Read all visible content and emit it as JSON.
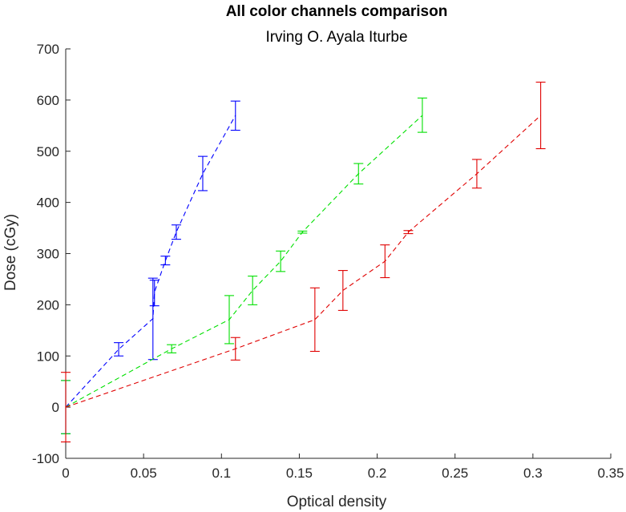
{
  "chart_data": {
    "type": "line",
    "title": "All color channels comparison",
    "subtitle": "Irving O. Ayala Iturbe",
    "xlabel": "Optical density",
    "ylabel": "Dose (cGy)",
    "xlim": [
      0,
      0.35
    ],
    "ylim": [
      -100,
      700
    ],
    "xticks": [
      "0",
      "0.05",
      "0.1",
      "0.15",
      "0.2",
      "0.25",
      "0.3",
      "0.35"
    ],
    "yticks": [
      "-100",
      "0",
      "100",
      "200",
      "300",
      "400",
      "500",
      "600",
      "700"
    ],
    "grid": false,
    "legend": "none",
    "line_style": "dashed",
    "series": [
      {
        "color": "#0000ff",
        "points": [
          {
            "x": 0.0,
            "y": 0,
            "err_low": -52,
            "err_high": 52
          },
          {
            "x": 0.034,
            "y": 113,
            "err_low": 100,
            "err_high": 126
          },
          {
            "x": 0.056,
            "y": 173,
            "err_low": 93,
            "err_high": 252
          },
          {
            "x": 0.057,
            "y": 225,
            "err_low": 198,
            "err_high": 248
          },
          {
            "x": 0.064,
            "y": 286,
            "err_low": 278,
            "err_high": 295
          },
          {
            "x": 0.071,
            "y": 342,
            "err_low": 328,
            "err_high": 356
          },
          {
            "x": 0.088,
            "y": 456,
            "err_low": 423,
            "err_high": 490
          },
          {
            "x": 0.109,
            "y": 570,
            "err_low": 541,
            "err_high": 598
          }
        ]
      },
      {
        "color": "#00e000",
        "points": [
          {
            "x": 0.0,
            "y": 0,
            "err_low": -52,
            "err_high": 52
          },
          {
            "x": 0.068,
            "y": 114,
            "err_low": 106,
            "err_high": 122
          },
          {
            "x": 0.105,
            "y": 171,
            "err_low": 124,
            "err_high": 218
          },
          {
            "x": 0.12,
            "y": 228,
            "err_low": 200,
            "err_high": 256
          },
          {
            "x": 0.138,
            "y": 285,
            "err_low": 265,
            "err_high": 305
          },
          {
            "x": 0.152,
            "y": 342,
            "err_low": 340,
            "err_high": 344
          },
          {
            "x": 0.188,
            "y": 456,
            "err_low": 436,
            "err_high": 476
          },
          {
            "x": 0.229,
            "y": 570,
            "err_low": 537,
            "err_high": 604
          }
        ]
      },
      {
        "color": "#e00000",
        "points": [
          {
            "x": 0.0,
            "y": 0,
            "err_low": -68,
            "err_high": 68
          },
          {
            "x": 0.109,
            "y": 114,
            "err_low": 92,
            "err_high": 136
          },
          {
            "x": 0.16,
            "y": 171,
            "err_low": 109,
            "err_high": 233
          },
          {
            "x": 0.178,
            "y": 228,
            "err_low": 189,
            "err_high": 267
          },
          {
            "x": 0.205,
            "y": 285,
            "err_low": 253,
            "err_high": 317
          },
          {
            "x": 0.22,
            "y": 342,
            "err_low": 339,
            "err_high": 345
          },
          {
            "x": 0.264,
            "y": 456,
            "err_low": 428,
            "err_high": 484
          },
          {
            "x": 0.305,
            "y": 570,
            "err_low": 505,
            "err_high": 635
          }
        ]
      }
    ]
  }
}
